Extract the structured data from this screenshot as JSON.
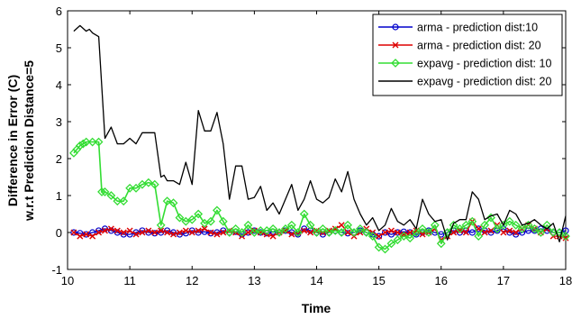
{
  "chart_data": {
    "type": "line",
    "title": "",
    "xlabel": "Time",
    "ylabel": [
      "Difference in Error (C)",
      "w.r.t Prediction Distance=5"
    ],
    "xlim": [
      10,
      18
    ],
    "ylim": [
      -1,
      6
    ],
    "xticks": [
      "10",
      "11",
      "12",
      "13",
      "14",
      "15",
      "16",
      "17",
      "18"
    ],
    "yticks": [
      "-1",
      "0",
      "1",
      "2",
      "3",
      "4",
      "5",
      "6"
    ],
    "grid": false,
    "legend_position": "top-right",
    "series": [
      {
        "name": "arma - prediction dist:10",
        "color": "#0000cc",
        "marker": "circle",
        "x": [
          10.1,
          10.2,
          10.3,
          10.4,
          10.5,
          10.6,
          10.7,
          10.8,
          10.9,
          11.0,
          11.1,
          11.2,
          11.3,
          11.4,
          11.5,
          11.6,
          11.7,
          11.8,
          11.9,
          12.0,
          12.1,
          12.2,
          12.3,
          12.4,
          12.5,
          12.6,
          12.7,
          12.8,
          12.9,
          13.0,
          13.1,
          13.2,
          13.3,
          13.4,
          13.5,
          13.6,
          13.7,
          13.8,
          13.9,
          14.0,
          14.1,
          14.2,
          14.3,
          14.4,
          14.5,
          14.6,
          14.7,
          14.8,
          14.9,
          15.0,
          15.1,
          15.2,
          15.3,
          15.4,
          15.5,
          15.6,
          15.7,
          15.8,
          15.9,
          16.0,
          16.1,
          16.2,
          16.3,
          16.4,
          16.5,
          16.6,
          16.7,
          16.8,
          16.9,
          17.0,
          17.1,
          17.2,
          17.3,
          17.4,
          17.5,
          17.6,
          17.7,
          17.8,
          17.9,
          18.0
        ],
        "values": [
          0.0,
          -0.02,
          -0.05,
          0.0,
          0.05,
          0.1,
          0.05,
          0.0,
          -0.05,
          -0.05,
          0.0,
          0.05,
          0.0,
          -0.02,
          0.0,
          0.05,
          0.0,
          -0.05,
          -0.02,
          0.05,
          0.0,
          0.02,
          -0.02,
          0.0,
          0.05,
          0.0,
          0.02,
          -0.05,
          0.0,
          0.05,
          0.0,
          -0.02,
          0.02,
          0.0,
          0.05,
          0.0,
          -0.05,
          0.1,
          0.05,
          0.0,
          -0.05,
          0.0,
          0.05,
          0.0,
          -0.02,
          0.0,
          0.05,
          0.0,
          -0.05,
          -0.1,
          0.0,
          -0.05,
          0.0,
          0.02,
          0.0,
          -0.05,
          0.0,
          0.05,
          0.0,
          -0.05,
          0.0,
          0.05,
          0.0,
          0.05,
          0.0,
          0.1,
          0.05,
          0.0,
          0.05,
          0.1,
          0.0,
          -0.05,
          0.0,
          0.05,
          0.05,
          0.1,
          0.05,
          0.0,
          0.0,
          0.05
        ]
      },
      {
        "name": "arma - prediction dist: 20",
        "color": "#dd0000",
        "marker": "x",
        "x": [
          10.1,
          10.2,
          10.3,
          10.4,
          10.5,
          10.6,
          10.7,
          10.8,
          10.9,
          11.0,
          11.1,
          11.2,
          11.3,
          11.4,
          11.5,
          11.6,
          11.7,
          11.8,
          11.9,
          12.0,
          12.1,
          12.2,
          12.3,
          12.4,
          12.5,
          12.6,
          12.7,
          12.8,
          12.9,
          13.0,
          13.1,
          13.2,
          13.3,
          13.4,
          13.5,
          13.6,
          13.7,
          13.8,
          13.9,
          14.0,
          14.1,
          14.2,
          14.3,
          14.4,
          14.5,
          14.6,
          14.7,
          14.8,
          14.9,
          15.0,
          15.1,
          15.2,
          15.3,
          15.4,
          15.5,
          15.6,
          15.7,
          15.8,
          15.9,
          16.0,
          16.1,
          16.2,
          16.3,
          16.4,
          16.5,
          16.6,
          16.7,
          16.8,
          16.9,
          17.0,
          17.1,
          17.2,
          17.3,
          17.4,
          17.5,
          17.6,
          17.7,
          17.8,
          17.9,
          18.0
        ],
        "values": [
          0.0,
          -0.1,
          -0.05,
          -0.1,
          0.0,
          0.05,
          0.1,
          0.05,
          0.0,
          0.05,
          -0.05,
          0.0,
          0.05,
          0.0,
          0.05,
          0.0,
          -0.05,
          0.0,
          0.05,
          0.0,
          0.05,
          0.1,
          0.0,
          -0.05,
          0.0,
          0.05,
          0.0,
          -0.1,
          0.0,
          0.05,
          0.0,
          -0.05,
          -0.1,
          0.0,
          0.05,
          -0.05,
          0.0,
          0.05,
          0.0,
          0.05,
          0.0,
          0.05,
          0.1,
          0.2,
          0.0,
          -0.1,
          0.0,
          0.1,
          0.0,
          -0.1,
          0.0,
          0.05,
          0.0,
          -0.05,
          0.0,
          0.05,
          -0.05,
          0.0,
          0.1,
          -0.2,
          -0.1,
          0.0,
          0.05,
          0.0,
          0.3,
          0.1,
          0.0,
          0.05,
          0.2,
          0.0,
          0.05,
          0.0,
          0.1,
          0.2,
          0.1,
          0.0,
          0.1,
          -0.1,
          -0.1,
          -0.15
        ]
      },
      {
        "name": "expavg - prediction dist: 10",
        "color": "#33dd33",
        "marker": "diamond",
        "x": [
          10.1,
          10.15,
          10.2,
          10.25,
          10.3,
          10.4,
          10.5,
          10.55,
          10.6,
          10.7,
          10.8,
          10.9,
          11.0,
          11.1,
          11.2,
          11.3,
          11.4,
          11.5,
          11.6,
          11.7,
          11.8,
          11.9,
          12.0,
          12.1,
          12.2,
          12.3,
          12.4,
          12.5,
          12.6,
          12.7,
          12.8,
          12.9,
          13.0,
          13.1,
          13.2,
          13.3,
          13.4,
          13.5,
          13.6,
          13.7,
          13.8,
          13.9,
          14.0,
          14.1,
          14.2,
          14.3,
          14.4,
          14.5,
          14.6,
          14.7,
          14.8,
          14.9,
          15.0,
          15.1,
          15.2,
          15.3,
          15.4,
          15.5,
          15.6,
          15.7,
          15.8,
          15.9,
          16.0,
          16.1,
          16.2,
          16.3,
          16.4,
          16.5,
          16.6,
          16.7,
          16.8,
          16.9,
          17.0,
          17.1,
          17.2,
          17.3,
          17.4,
          17.5,
          17.6,
          17.7,
          17.8,
          17.9,
          18.0
        ],
        "values": [
          2.15,
          2.25,
          2.35,
          2.4,
          2.45,
          2.45,
          2.45,
          1.1,
          1.1,
          1.0,
          0.85,
          0.85,
          1.2,
          1.2,
          1.3,
          1.35,
          1.3,
          0.2,
          0.85,
          0.8,
          0.4,
          0.3,
          0.35,
          0.5,
          0.25,
          0.3,
          0.6,
          0.3,
          0.0,
          0.1,
          0.0,
          0.2,
          0.0,
          0.05,
          0.05,
          0.1,
          0.0,
          0.1,
          0.2,
          0.0,
          0.5,
          0.2,
          0.0,
          0.1,
          0.0,
          0.05,
          0.0,
          0.2,
          0.0,
          0.1,
          0.0,
          -0.1,
          -0.4,
          -0.45,
          -0.3,
          -0.2,
          -0.1,
          -0.15,
          0.0,
          0.1,
          0.0,
          0.2,
          -0.3,
          0.0,
          0.2,
          0.1,
          0.2,
          0.3,
          -0.1,
          0.2,
          0.4,
          0.1,
          0.2,
          0.3,
          0.2,
          0.1,
          0.2,
          0.1,
          0.0,
          0.2,
          0.0,
          0.0,
          -0.1
        ]
      },
      {
        "name": "expavg - prediction dist: 20",
        "color": "#000000",
        "marker": "none",
        "x": [
          10.1,
          10.2,
          10.3,
          10.35,
          10.4,
          10.5,
          10.6,
          10.7,
          10.8,
          10.9,
          11.0,
          11.1,
          11.2,
          11.3,
          11.4,
          11.5,
          11.55,
          11.6,
          11.7,
          11.8,
          11.9,
          12.0,
          12.1,
          12.2,
          12.3,
          12.4,
          12.5,
          12.6,
          12.7,
          12.8,
          12.9,
          13.0,
          13.1,
          13.2,
          13.3,
          13.4,
          13.5,
          13.6,
          13.7,
          13.8,
          13.9,
          14.0,
          14.1,
          14.2,
          14.3,
          14.4,
          14.5,
          14.6,
          14.7,
          14.8,
          14.9,
          15.0,
          15.1,
          15.2,
          15.3,
          15.4,
          15.5,
          15.6,
          15.7,
          15.8,
          15.9,
          16.0,
          16.1,
          16.2,
          16.3,
          16.4,
          16.5,
          16.6,
          16.7,
          16.8,
          16.9,
          17.0,
          17.1,
          17.2,
          17.3,
          17.4,
          17.5,
          17.6,
          17.7,
          17.8,
          17.9,
          18.0
        ],
        "values": [
          5.45,
          5.6,
          5.45,
          5.5,
          5.4,
          5.3,
          2.55,
          2.85,
          2.4,
          2.4,
          2.55,
          2.4,
          2.7,
          2.7,
          2.7,
          1.5,
          1.55,
          1.4,
          1.4,
          1.3,
          1.9,
          1.3,
          3.3,
          2.75,
          2.75,
          3.25,
          2.4,
          0.9,
          1.8,
          1.8,
          0.9,
          0.95,
          1.25,
          0.6,
          0.8,
          0.5,
          0.9,
          1.3,
          0.6,
          0.9,
          1.4,
          0.9,
          0.8,
          0.95,
          1.45,
          1.1,
          1.65,
          0.9,
          0.5,
          0.2,
          0.4,
          0.05,
          0.2,
          0.65,
          0.3,
          0.2,
          0.35,
          0.1,
          0.9,
          0.5,
          0.3,
          0.35,
          -0.2,
          0.25,
          0.35,
          0.35,
          1.1,
          0.9,
          0.35,
          0.45,
          0.5,
          0.2,
          0.6,
          0.5,
          0.2,
          0.25,
          0.35,
          0.2,
          0.1,
          0.25,
          -0.25,
          0.45
        ]
      }
    ]
  }
}
